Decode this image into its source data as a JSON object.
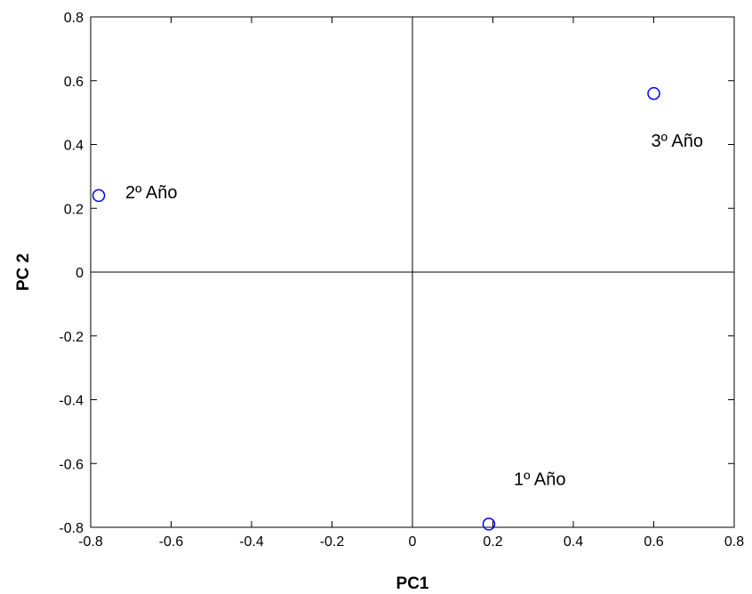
{
  "chart_data": {
    "type": "scatter",
    "title": "",
    "xlabel": "PC1",
    "ylabel": "PC 2",
    "xlim": [
      -0.8,
      0.8
    ],
    "ylim": [
      -0.8,
      0.8
    ],
    "xticks": [
      "-0.8",
      "-0.6",
      "-0.4",
      "-0.2",
      "0",
      "0.2",
      "0.4",
      "0.6",
      "0.8"
    ],
    "yticks": [
      "-0.8",
      "-0.6",
      "-0.4",
      "-0.2",
      "0",
      "0.2",
      "0.4",
      "0.6",
      "0.8"
    ],
    "grid": false,
    "zero_lines": true,
    "marker": "open-circle",
    "marker_color": "#0000ff",
    "points": [
      {
        "label": "2º Año",
        "x": -0.78,
        "y": 0.24
      },
      {
        "label": "3º Año",
        "x": 0.6,
        "y": 0.56
      },
      {
        "label": "1º Año",
        "x": 0.19,
        "y": -0.79
      }
    ]
  }
}
